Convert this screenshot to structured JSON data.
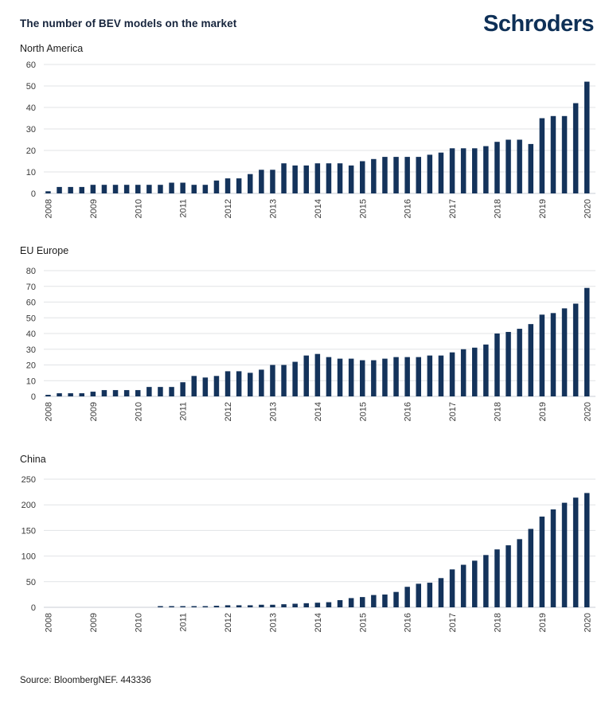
{
  "header": {
    "title": "The number of BEV models on the market",
    "brand": "Schroders"
  },
  "footer": {
    "source": "Source: BloombergNEF. 443336"
  },
  "colors": {
    "bar": "#14335b",
    "title_navy": "#16243c",
    "brand_navy": "#0e3057",
    "axis_text": "#3a3a3a",
    "gridline": "#e1e3e6",
    "baseline": "#c9ced4"
  },
  "chart_data": [
    {
      "type": "bar",
      "title": "North America",
      "frequency": "quarterly bars, 2008 Q1 through 2020 Q1",
      "x_labels": [
        "2008",
        "2009",
        "2010",
        "2011",
        "2012",
        "2013",
        "2014",
        "2015",
        "2016",
        "2017",
        "2018",
        "2019",
        "2020"
      ],
      "bars_per_year_label": 4,
      "values": [
        1,
        3,
        3,
        3,
        4,
        4,
        4,
        4,
        4,
        4,
        4,
        5,
        5,
        4,
        4,
        6,
        7,
        7,
        9,
        11,
        11,
        14,
        13,
        13,
        14,
        14,
        14,
        13,
        15,
        16,
        17,
        17,
        17,
        17,
        18,
        19,
        21,
        21,
        21,
        22,
        24,
        25,
        25,
        23,
        35,
        36,
        36,
        42,
        52
      ],
      "ylim": [
        0,
        60
      ],
      "ytick_step": 10,
      "grid": true,
      "legend": "none"
    },
    {
      "type": "bar",
      "title": "EU Europe",
      "frequency": "quarterly bars, 2008 Q1 through 2020 Q1",
      "x_labels": [
        "2008",
        "2009",
        "2010",
        "2011",
        "2012",
        "2013",
        "2014",
        "2015",
        "2016",
        "2017",
        "2018",
        "2019",
        "2020"
      ],
      "bars_per_year_label": 4,
      "values": [
        1,
        2,
        2,
        2,
        3,
        4,
        4,
        4,
        4,
        6,
        6,
        6,
        9,
        13,
        12,
        13,
        16,
        16,
        15,
        17,
        20,
        20,
        22,
        26,
        27,
        25,
        24,
        24,
        23,
        23,
        24,
        25,
        25,
        25,
        26,
        26,
        28,
        30,
        31,
        33,
        40,
        41,
        43,
        46,
        52,
        53,
        56,
        59,
        69
      ],
      "ylim": [
        0,
        80
      ],
      "ytick_step": 10,
      "grid": true,
      "legend": "none"
    },
    {
      "type": "bar",
      "title": "China",
      "frequency": "quarterly bars, 2008 Q1 through 2020 Q1",
      "x_labels": [
        "2008",
        "2009",
        "2010",
        "2011",
        "2012",
        "2013",
        "2014",
        "2015",
        "2016",
        "2017",
        "2018",
        "2019",
        "2020"
      ],
      "bars_per_year_label": 4,
      "values": [
        0,
        0,
        0,
        0,
        0,
        0,
        0,
        0,
        0,
        0,
        2,
        2,
        2,
        2,
        2,
        3,
        4,
        4,
        4,
        5,
        5,
        6,
        7,
        8,
        9,
        10,
        14,
        18,
        20,
        24,
        25,
        30,
        40,
        46,
        48,
        57,
        74,
        83,
        91,
        102,
        113,
        121,
        133,
        153,
        177,
        191,
        204,
        214,
        223
      ],
      "ylim": [
        0,
        250
      ],
      "ytick_step": 50,
      "grid": true,
      "legend": "none"
    }
  ]
}
